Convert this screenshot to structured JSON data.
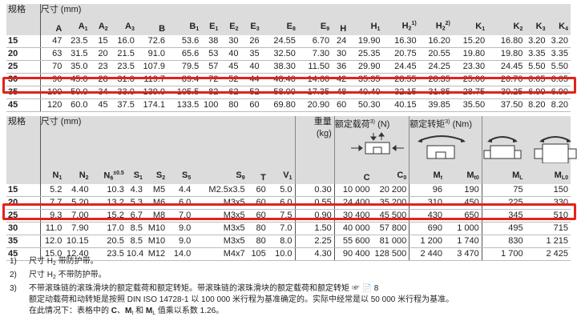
{
  "table1": {
    "size_label": "规格",
    "dim_label": "尺寸 (mm)",
    "columns": [
      {
        "b": "A"
      },
      {
        "b": "A",
        "s": "1"
      },
      {
        "b": "A",
        "s": "2"
      },
      {
        "b": "A",
        "s": "3"
      },
      {
        "b": "B"
      },
      {
        "b": "B",
        "s": "1"
      },
      {
        "b": "E",
        "s": "1"
      },
      {
        "b": "E",
        "s": "2"
      },
      {
        "b": "E",
        "s": "3"
      },
      {
        "b": "E",
        "s": "8"
      },
      {
        "b": "E",
        "s": "9"
      },
      {
        "b": "H"
      },
      {
        "b": "H",
        "s": "1"
      },
      {
        "b": "H",
        "s": "2",
        "p": "1)"
      },
      {
        "b": "H",
        "s": "2",
        "p": "2)"
      },
      {
        "b": "K",
        "s": "1"
      },
      {
        "b": "K",
        "s": "2"
      },
      {
        "b": "K",
        "s": "3"
      },
      {
        "b": "K",
        "s": "4"
      }
    ],
    "rows": [
      [
        "15",
        "47",
        "23.5",
        "15",
        "16.0",
        "72.6",
        "53.6",
        "38",
        "30",
        "26",
        "24.55",
        "6.70",
        "24",
        "19.90",
        "16.30",
        "16.20",
        "15.20",
        "16.80",
        "3.20",
        "3.20"
      ],
      [
        "20",
        "63",
        "31.5",
        "20",
        "21.5",
        "91.0",
        "65.6",
        "53",
        "40",
        "35",
        "32.50",
        "7.30",
        "30",
        "25.35",
        "20.75",
        "20.55",
        "19.80",
        "19.80",
        "3.35",
        "3.35"
      ],
      [
        "25",
        "70",
        "35.0",
        "23",
        "23.5",
        "107.9",
        "79.5",
        "57",
        "45",
        "40",
        "38.30",
        "11.50",
        "36",
        "29.90",
        "24.45",
        "24.25",
        "23.30",
        "24.45",
        "5.50",
        "5.50"
      ],
      [
        "30",
        "90",
        "45.0",
        "28",
        "31.0",
        "119.7",
        "89.4",
        "72",
        "52",
        "44",
        "48.40",
        "14.60",
        "42",
        "35.35",
        "28.55",
        "28.35",
        "25.00",
        "26.70",
        "6.05",
        "6.05"
      ],
      [
        "35",
        "100",
        "50.0",
        "34",
        "33.0",
        "139.0",
        "105.5",
        "82",
        "62",
        "52",
        "58.00",
        "17.35",
        "48",
        "40.40",
        "32.15",
        "31.85",
        "28.75",
        "30.25",
        "6.90",
        "6.90"
      ],
      [
        "45",
        "120",
        "60.0",
        "45",
        "37.5",
        "174.1",
        "133.5",
        "100",
        "80",
        "60",
        "69.80",
        "20.90",
        "60",
        "50.30",
        "40.15",
        "39.85",
        "35.50",
        "37.50",
        "8.20",
        "8.20"
      ]
    ],
    "highlight_row": "35"
  },
  "table2": {
    "size_label": "规格",
    "dim_label": "尺寸 (mm)",
    "weight_label": "重量",
    "weight_unit": "(kg)",
    "load_label": "额定载荷",
    "load_sup": "3)",
    "load_unit": "(N)",
    "torque_label": "额定转矩",
    "torque_sup": "3)",
    "torque_unit": "(Nm)",
    "columns": [
      {
        "b": "N",
        "s": "1"
      },
      {
        "b": "N",
        "s": "2"
      },
      {
        "b": "N",
        "s": "6",
        "p": "±0.5"
      },
      {
        "b": "S",
        "s": "1"
      },
      {
        "b": "S",
        "s": "2"
      },
      {
        "b": "S",
        "s": "5"
      },
      {
        "b": "S",
        "s": "9"
      },
      {
        "b": "T"
      },
      {
        "b": "V",
        "s": "1"
      },
      {
        "b": ""
      },
      {
        "b": "C"
      },
      {
        "b": "C",
        "s": "0"
      },
      {
        "b": "M",
        "s": "t"
      },
      {
        "b": "M",
        "s": "t0"
      },
      {
        "b": "M",
        "s": "L"
      },
      {
        "b": "M",
        "s": "L0"
      }
    ],
    "rows": [
      [
        "15",
        "5.2",
        "4.40",
        "10.3",
        "4.3",
        "M5",
        "4.4",
        "M2.5x3.5",
        "60",
        "5.0",
        "0.30",
        "10 000",
        "20 200",
        "96",
        "190",
        "75",
        "150"
      ],
      [
        "20",
        "7.7",
        "5.20",
        "13.2",
        "5.3",
        "M6",
        "6.0",
        "M3x5",
        "60",
        "6.0",
        "0.55",
        "24 400",
        "35 200",
        "310",
        "450",
        "225",
        "330"
      ],
      [
        "25",
        "9.3",
        "7.00",
        "15.2",
        "6.7",
        "M8",
        "7.0",
        "M3x5",
        "60",
        "7.5",
        "0.90",
        "30 400",
        "45 500",
        "430",
        "650",
        "345",
        "510"
      ],
      [
        "30",
        "11.0",
        "7.90",
        "17.0",
        "8.5",
        "M10",
        "9.0",
        "M3x5",
        "80",
        "7.0",
        "1.50",
        "40 000",
        "57 800",
        "690",
        "1 000",
        "495",
        "715"
      ],
      [
        "35",
        "12.0",
        "10.15",
        "20.5",
        "8.5",
        "M10",
        "9.0",
        "M3x5",
        "80",
        "8.0",
        "2.25",
        "55 600",
        "81 000",
        "1 200",
        "1 740",
        "830",
        "1 215"
      ],
      [
        "45",
        "15.0",
        "12.40",
        "23.5",
        "10.4",
        "M12",
        "14.0",
        "M4x7",
        "105",
        "10.0",
        "4.30",
        "90 400",
        "128 500",
        "2 440",
        "3 470",
        "1 700",
        "2 425"
      ]
    ],
    "highlight_row": "35"
  },
  "notes": [
    {
      "num": "1)",
      "pre": "尺寸 H",
      "sub": "2",
      "post": " 带防护带。"
    },
    {
      "num": "2)",
      "pre": "尺寸 H",
      "sub": "2",
      "post": " 不带防护带。"
    },
    {
      "num": "3)",
      "text": "不带滚珠链的滚珠滑块的额定载荷和额定转矩。带滚珠链的滚珠滑块的额定载荷和额定转矩 ☞ 📄 8"
    }
  ],
  "note3_line2": "额定动载荷和动转矩是按照 DIN ISO 14728-1 以 100 000 米行程为基准确定的。实际中经常是以 50 000 米行程为基准。",
  "note3_line3": {
    "pre": "在此情况下：表格中的 ",
    "c": "C",
    "sep": "、",
    "mt": "M",
    "mt_sub": "t",
    "and": " 和 ",
    "ml": "M",
    "ml_sub": "L",
    "post": " 值乘以系数 1.26。"
  },
  "colors": {
    "highlight": "#e2231a",
    "header_bg": "#dcdcdc"
  }
}
